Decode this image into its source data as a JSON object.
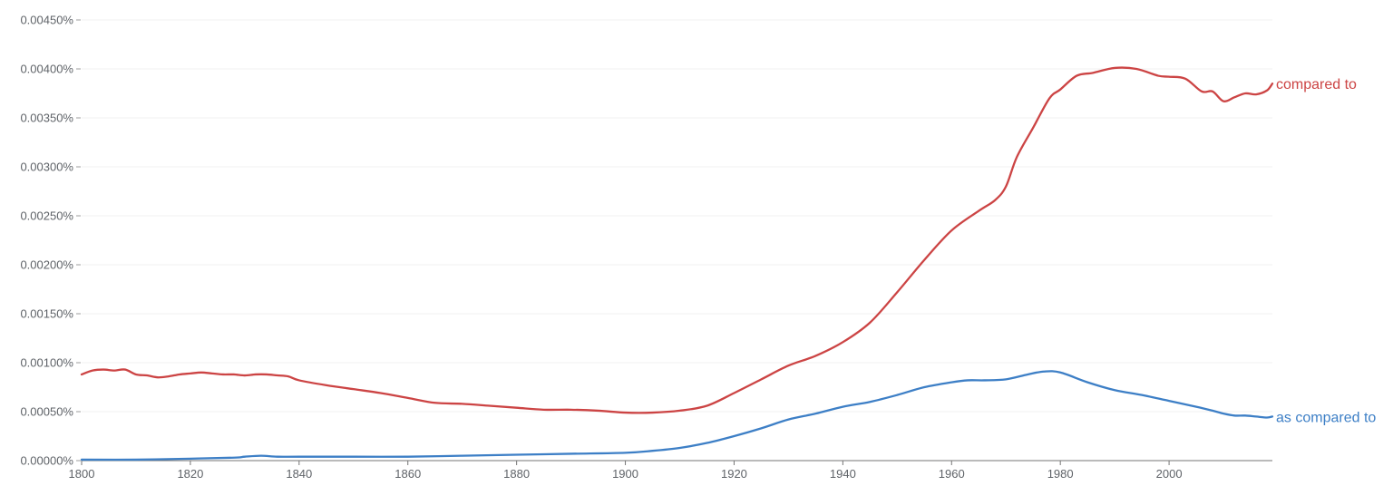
{
  "chart_data": {
    "type": "line",
    "title": "",
    "xlabel": "",
    "ylabel": "",
    "xlim": [
      1800,
      2019
    ],
    "ylim": [
      0,
      0.0045
    ],
    "grid": true,
    "legend": "inline-right",
    "x_ticks": [
      {
        "value": 1800,
        "label": "1800"
      },
      {
        "value": 1820,
        "label": "1820"
      },
      {
        "value": 1840,
        "label": "1840"
      },
      {
        "value": 1860,
        "label": "1860"
      },
      {
        "value": 1880,
        "label": "1880"
      },
      {
        "value": 1900,
        "label": "1900"
      },
      {
        "value": 1920,
        "label": "1920"
      },
      {
        "value": 1940,
        "label": "1940"
      },
      {
        "value": 1960,
        "label": "1960"
      },
      {
        "value": 1980,
        "label": "1980"
      },
      {
        "value": 2000,
        "label": "2000"
      }
    ],
    "y_ticks": [
      {
        "value": 0,
        "label": "0.00000%"
      },
      {
        "value": 0.0005,
        "label": "0.00050%"
      },
      {
        "value": 0.001,
        "label": "0.00100%"
      },
      {
        "value": 0.0015,
        "label": "0.00150%"
      },
      {
        "value": 0.002,
        "label": "0.00200%"
      },
      {
        "value": 0.0025,
        "label": "0.00250%"
      },
      {
        "value": 0.003,
        "label": "0.00300%"
      },
      {
        "value": 0.0035,
        "label": "0.00350%"
      },
      {
        "value": 0.004,
        "label": "0.00400%"
      },
      {
        "value": 0.0045,
        "label": "0.00450%"
      }
    ],
    "series": [
      {
        "name": "compared to",
        "color": "#cc4444",
        "x": [
          1800,
          1802,
          1804,
          1806,
          1808,
          1810,
          1812,
          1814,
          1816,
          1818,
          1820,
          1822,
          1824,
          1826,
          1828,
          1830,
          1832,
          1834,
          1836,
          1838,
          1840,
          1845,
          1850,
          1855,
          1860,
          1865,
          1870,
          1875,
          1880,
          1885,
          1890,
          1895,
          1900,
          1905,
          1910,
          1915,
          1920,
          1925,
          1930,
          1935,
          1940,
          1945,
          1950,
          1955,
          1960,
          1965,
          1968,
          1970,
          1972,
          1975,
          1978,
          1980,
          1983,
          1986,
          1990,
          1994,
          1998,
          2000,
          2003,
          2006,
          2008,
          2010,
          2012,
          2014,
          2016,
          2018,
          2019
        ],
        "y": [
          0.00088,
          0.00092,
          0.00093,
          0.00092,
          0.00093,
          0.00088,
          0.00087,
          0.00085,
          0.00086,
          0.00088,
          0.00089,
          0.0009,
          0.00089,
          0.00088,
          0.00088,
          0.00087,
          0.00088,
          0.00088,
          0.00087,
          0.00086,
          0.00082,
          0.00077,
          0.00073,
          0.00069,
          0.00064,
          0.00059,
          0.00058,
          0.00056,
          0.00054,
          0.00052,
          0.00052,
          0.00051,
          0.00049,
          0.00049,
          0.00051,
          0.00056,
          0.00069,
          0.00083,
          0.00097,
          0.00107,
          0.00121,
          0.00141,
          0.00172,
          0.00205,
          0.00235,
          0.00255,
          0.00266,
          0.0028,
          0.0031,
          0.0034,
          0.0037,
          0.00379,
          0.00393,
          0.00396,
          0.00401,
          0.004,
          0.00393,
          0.00392,
          0.0039,
          0.00377,
          0.00377,
          0.00367,
          0.00371,
          0.00375,
          0.00374,
          0.00378,
          0.00385
        ]
      },
      {
        "name": "as compared to",
        "color": "#3d7fc6",
        "x": [
          1800,
          1810,
          1820,
          1828,
          1830,
          1833,
          1836,
          1840,
          1850,
          1860,
          1870,
          1880,
          1890,
          1900,
          1905,
          1910,
          1915,
          1920,
          1925,
          1930,
          1935,
          1940,
          1945,
          1950,
          1955,
          1960,
          1963,
          1966,
          1970,
          1974,
          1977,
          1980,
          1985,
          1990,
          1995,
          2000,
          2005,
          2008,
          2010,
          2012,
          2014,
          2016,
          2018,
          2019
        ],
        "y": [
          1e-05,
          1e-05,
          2e-05,
          3e-05,
          4e-05,
          5e-05,
          4e-05,
          4e-05,
          4e-05,
          4e-05,
          5e-05,
          6e-05,
          7e-05,
          8e-05,
          0.0001,
          0.00013,
          0.00018,
          0.00025,
          0.00033,
          0.00042,
          0.00048,
          0.00055,
          0.0006,
          0.00067,
          0.00075,
          0.0008,
          0.00082,
          0.00082,
          0.00083,
          0.00088,
          0.00091,
          0.0009,
          0.0008,
          0.00072,
          0.00067,
          0.00061,
          0.00055,
          0.00051,
          0.00048,
          0.00046,
          0.00046,
          0.00045,
          0.00044,
          0.00045
        ]
      }
    ]
  }
}
